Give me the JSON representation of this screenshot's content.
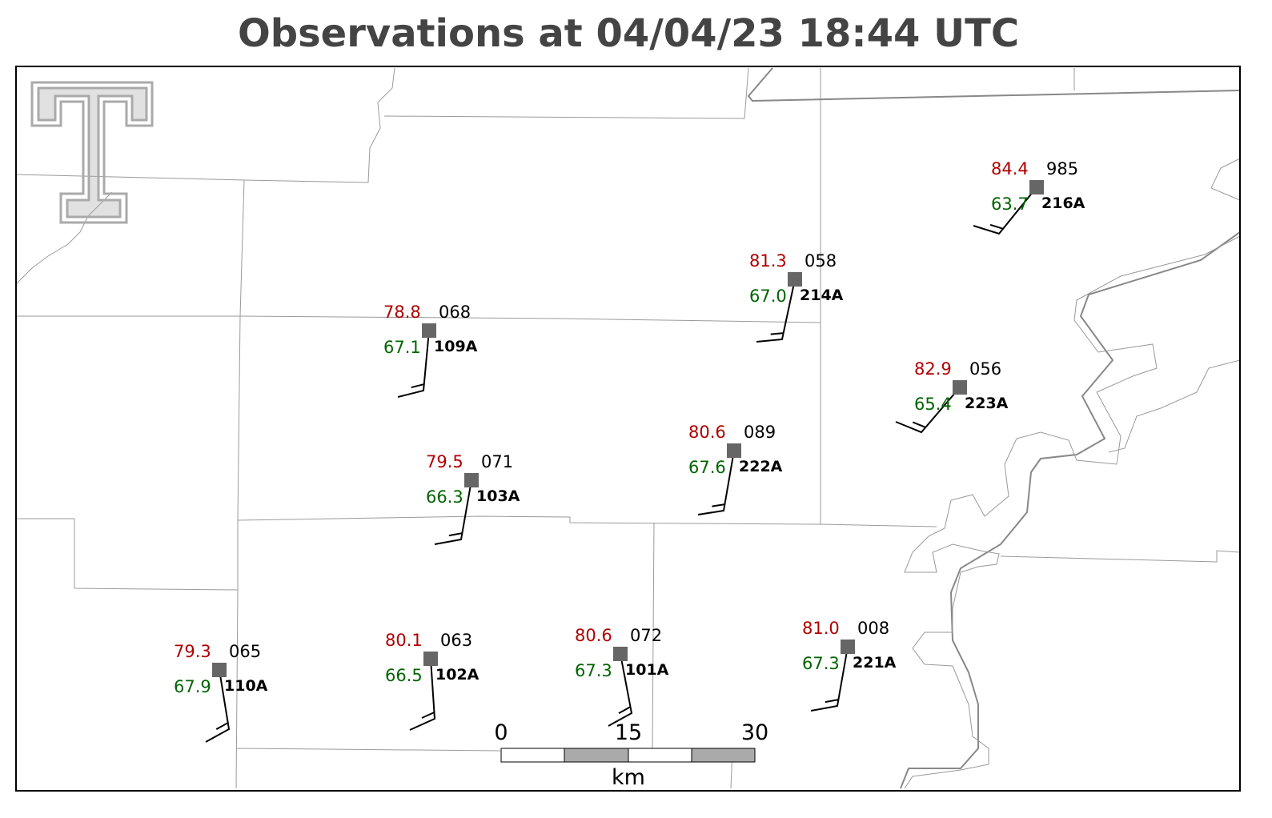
{
  "header": {
    "title": "Observations at 04/04/23 18:44 UTC"
  },
  "stations": [
    {
      "id": "216A",
      "temperature": "84.4",
      "dewpoint": "63.7",
      "pressure": "985"
    },
    {
      "id": "214A",
      "temperature": "81.3",
      "dewpoint": "67.0",
      "pressure": "058"
    },
    {
      "id": "109A",
      "temperature": "78.8",
      "dewpoint": "67.1",
      "pressure": "068"
    },
    {
      "id": "223A",
      "temperature": "82.9",
      "dewpoint": "65.4",
      "pressure": "056"
    },
    {
      "id": "222A",
      "temperature": "80.6",
      "dewpoint": "67.6",
      "pressure": "089"
    },
    {
      "id": "103A",
      "temperature": "79.5",
      "dewpoint": "66.3",
      "pressure": "071"
    },
    {
      "id": "110A",
      "temperature": "79.3",
      "dewpoint": "67.9",
      "pressure": "065"
    },
    {
      "id": "102A",
      "temperature": "80.1",
      "dewpoint": "66.5",
      "pressure": "063"
    },
    {
      "id": "101A",
      "temperature": "80.6",
      "dewpoint": "67.3",
      "pressure": "072"
    },
    {
      "id": "221A",
      "temperature": "81.0",
      "dewpoint": "67.3",
      "pressure": "008"
    }
  ],
  "scale_bar": {
    "ticks": [
      "0",
      "15",
      "30"
    ],
    "unit": "km"
  }
}
